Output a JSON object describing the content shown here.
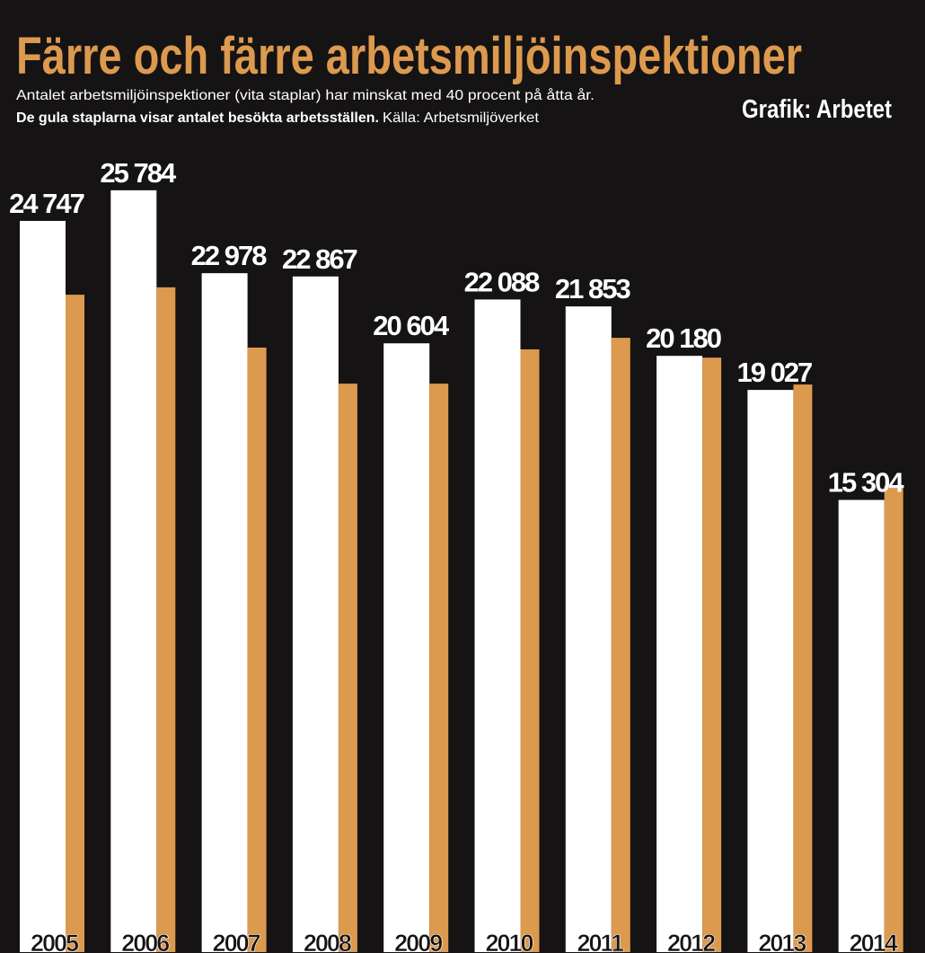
{
  "chart_data": {
    "type": "bar",
    "title": "Färre och färre arbetsmiljöinspektioner",
    "subtitle": [
      "Antalet arbetsmiljöinspektioner (vita staplar) har minskat med 40 procent på åtta år.",
      "De gula staplarna visar antalet besökta arbetsställen."
    ],
    "source": "Källa: Arbetsmiljöverket",
    "credit": "Grafik: Arbetet",
    "categories": [
      "2005",
      "2006",
      "2007",
      "2008",
      "2009",
      "2010",
      "2011",
      "2012",
      "2013",
      "2014"
    ],
    "series": [
      {
        "color": "#ffffff",
        "values": [
          24747,
          25784,
          22978,
          22867,
          20604,
          22088,
          21853,
          20180,
          19027,
          15304
        ],
        "value_labels": [
          "24 747",
          "25 784",
          "22 978",
          "22 867",
          "20 604",
          "22 088",
          "21 853",
          "20 180",
          "19 027",
          "15 304"
        ]
      },
      {
        "color": "#dc9a4f",
        "values": [
          22250,
          22500,
          20460,
          19240,
          19240,
          20400,
          20790,
          20120,
          19210,
          15780
        ]
      }
    ]
  }
}
